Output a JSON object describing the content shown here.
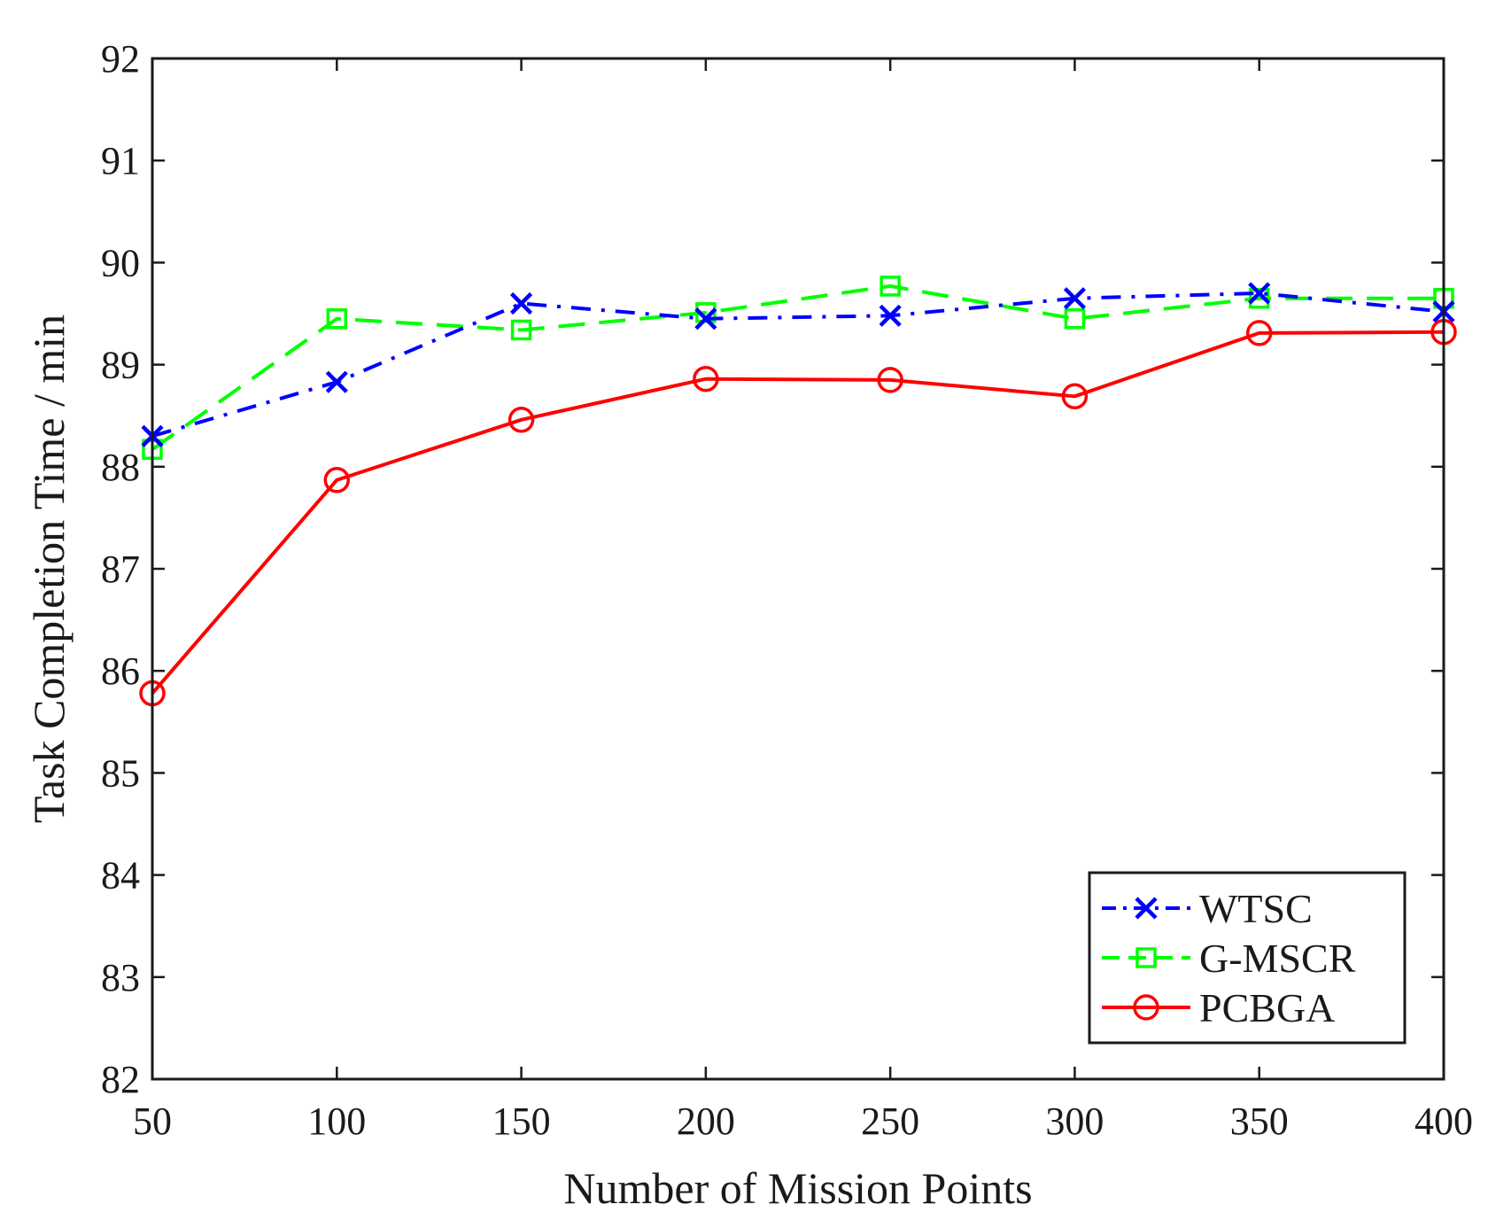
{
  "chart_data": {
    "type": "line",
    "title": "",
    "xlabel": "Number of Mission Points",
    "ylabel": "Task Completion Time / min",
    "xlim": [
      50,
      400
    ],
    "ylim": [
      82,
      92
    ],
    "xticks": [
      50,
      100,
      150,
      200,
      250,
      300,
      350,
      400
    ],
    "yticks": [
      82,
      83,
      84,
      85,
      86,
      87,
      88,
      89,
      90,
      91,
      92
    ],
    "xtick_labels": [
      "50",
      "100",
      "150",
      "200",
      "250",
      "300",
      "350",
      "400"
    ],
    "ytick_labels": [
      "82",
      "83",
      "84",
      "85",
      "86",
      "87",
      "88",
      "89",
      "90",
      "91",
      "92"
    ],
    "grid": false,
    "legend_position": "bottom-right",
    "x": [
      50,
      100,
      150,
      200,
      250,
      300,
      350,
      400
    ],
    "series": [
      {
        "name": "WTSC",
        "color": "#0000ff",
        "line_style": "dash-dot",
        "marker": "x",
        "values": [
          88.3,
          88.83,
          89.6,
          89.45,
          89.48,
          89.65,
          89.7,
          89.52
        ]
      },
      {
        "name": "G-MSCR",
        "color": "#00ff00",
        "line_style": "dashed",
        "marker": "square",
        "values": [
          88.17,
          89.45,
          89.34,
          89.51,
          89.77,
          89.45,
          89.65,
          89.65
        ]
      },
      {
        "name": "PCBGA",
        "color": "#ff0000",
        "line_style": "solid",
        "marker": "circle",
        "values": [
          85.78,
          87.87,
          88.46,
          88.86,
          88.85,
          88.69,
          89.31,
          89.32
        ]
      }
    ]
  }
}
